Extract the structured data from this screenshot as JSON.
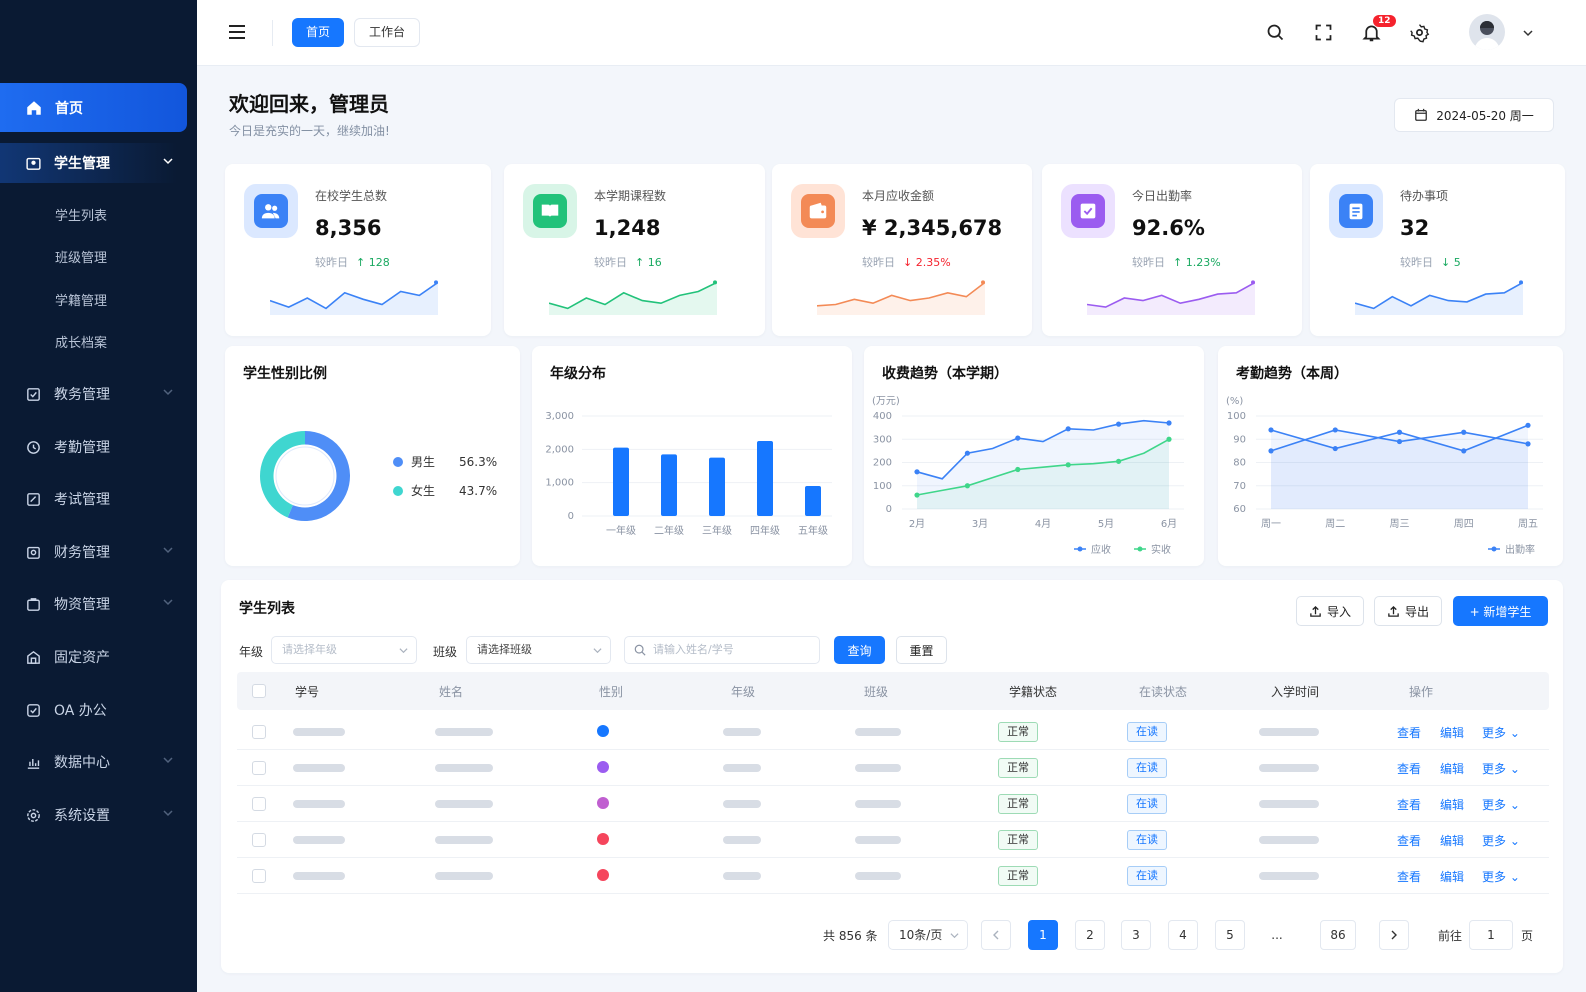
{
  "sidebar": {
    "home": "首页",
    "student_mgmt": "学生管理",
    "sub": [
      "学生列表",
      "班级管理",
      "学籍管理",
      "成长档案"
    ],
    "items": [
      "教务管理",
      "考勤管理",
      "考试管理",
      "财务管理",
      "物资管理",
      "固定资产",
      "OA 办公",
      "数据中心",
      "系统设置"
    ]
  },
  "topbar": {
    "tab_home": "首页",
    "tab_workbench": "工作台",
    "notif_count": "12"
  },
  "welcome": {
    "title": "欢迎回来，管理员",
    "subtitle": "今日是充实的一天，继续加油!",
    "date": "2024-05-20 周一"
  },
  "stats": [
    {
      "label": "在校学生总数",
      "value": "8,356",
      "cmp": "较昨日",
      "delta": "↑ 128",
      "delta_color": "#19a960",
      "color": "#3b82f6"
    },
    {
      "label": "本学期课程数",
      "value": "1,248",
      "cmp": "较昨日",
      "delta": "↑ 16",
      "delta_color": "#19a960",
      "color": "#22c27a"
    },
    {
      "label": "本月应收金额",
      "value": "¥ 2,345,678",
      "cmp": "较昨日",
      "delta": "↓ 2.35%",
      "delta_color": "#f5222d",
      "color": "#f38a56"
    },
    {
      "label": "今日出勤率",
      "value": "92.6%",
      "cmp": "较昨日",
      "delta": "↑ 1.23%",
      "delta_color": "#19a960",
      "color": "#9b5cf0"
    },
    {
      "label": "待办事项",
      "value": "32",
      "cmp": "较昨日",
      "delta": "↓ 5",
      "delta_color": "#19a960",
      "color": "#3b82f6"
    }
  ],
  "chart_data": [
    {
      "type": "pie",
      "title": "学生性别比例",
      "categories": [
        "男生",
        "女生"
      ],
      "values": [
        56.3,
        43.7
      ],
      "labels": [
        "56.3%",
        "43.7%"
      ],
      "colors": [
        "#4f8ef7",
        "#3fd6d0"
      ]
    },
    {
      "type": "bar",
      "title": "年级分布",
      "categories": [
        "一年级",
        "二年级",
        "三年级",
        "四年级",
        "五年级"
      ],
      "values": [
        2050,
        1850,
        1750,
        2250,
        900
      ],
      "ylim": [
        0,
        3000
      ],
      "yticks": [
        "0",
        "1,000",
        "2,000",
        "3,000"
      ]
    },
    {
      "type": "line",
      "title": "收费趋势（本学期）",
      "ylabel": "(万元)",
      "categories": [
        "2月",
        "3月",
        "4月",
        "5月",
        "6月"
      ],
      "x": [
        1,
        1.5,
        2,
        2.5,
        3,
        3.5,
        4,
        4.5,
        5,
        5.5,
        6
      ],
      "ylim": [
        0,
        400
      ],
      "yticks": [
        "0",
        "100",
        "200",
        "300",
        "400"
      ],
      "series": [
        {
          "name": "应收",
          "color": "#3b82f6",
          "values": [
            160,
            130,
            240,
            260,
            305,
            290,
            345,
            340,
            365,
            380,
            370
          ]
        },
        {
          "name": "实收",
          "color": "#3fd68a",
          "values": [
            60,
            80,
            100,
            135,
            170,
            180,
            190,
            195,
            205,
            240,
            300
          ]
        }
      ]
    },
    {
      "type": "line",
      "title": "考勤趋势（本周）",
      "ylabel": "(%)",
      "categories": [
        "周一",
        "周二",
        "周三",
        "周四",
        "周五"
      ],
      "ylim": [
        60,
        100
      ],
      "yticks": [
        "60",
        "70",
        "80",
        "90",
        "100"
      ],
      "series": [
        {
          "name": "出勤率",
          "color": "#3b82f6",
          "values": [
            94,
            86,
            93,
            85,
            96
          ],
          "values2": [
            85,
            94,
            89,
            93,
            88
          ]
        }
      ]
    }
  ],
  "table": {
    "title": "学生列表",
    "btn_import": "导入",
    "btn_export": "导出",
    "btn_add": "+ 新增学生",
    "filter_grade_label": "年级",
    "filter_grade_ph": "请选择年级",
    "filter_class_label": "班级",
    "filter_class_ph": "请选择班级",
    "search_ph": "请输入姓名/学号",
    "btn_query": "查询",
    "btn_reset": "重置",
    "columns": [
      "学号",
      "姓名",
      "性别",
      "年级",
      "班级",
      "学籍状态",
      "在读状态",
      "入学时间",
      "操作"
    ],
    "rows": [
      {
        "status": "正常",
        "reading": "在读",
        "view": "查看",
        "edit": "编辑",
        "more": "更多"
      },
      {
        "status": "正常",
        "reading": "在读",
        "view": "查看",
        "edit": "编辑",
        "more": "更多"
      },
      {
        "status": "正常",
        "reading": "在读",
        "view": "查看",
        "edit": "编辑",
        "more": "更多"
      },
      {
        "status": "正常",
        "reading": "在读",
        "view": "查看",
        "edit": "编辑",
        "more": "更多"
      },
      {
        "status": "正常",
        "reading": "在读",
        "view": "查看",
        "edit": "编辑",
        "more": "更多"
      }
    ]
  },
  "pagination": {
    "total": "共 856 条",
    "per_page": "10条/页",
    "pages": [
      "1",
      "2",
      "3",
      "4",
      "5",
      "...",
      "86"
    ],
    "goto": "前往",
    "goto_value": "1",
    "page_unit": "页"
  }
}
